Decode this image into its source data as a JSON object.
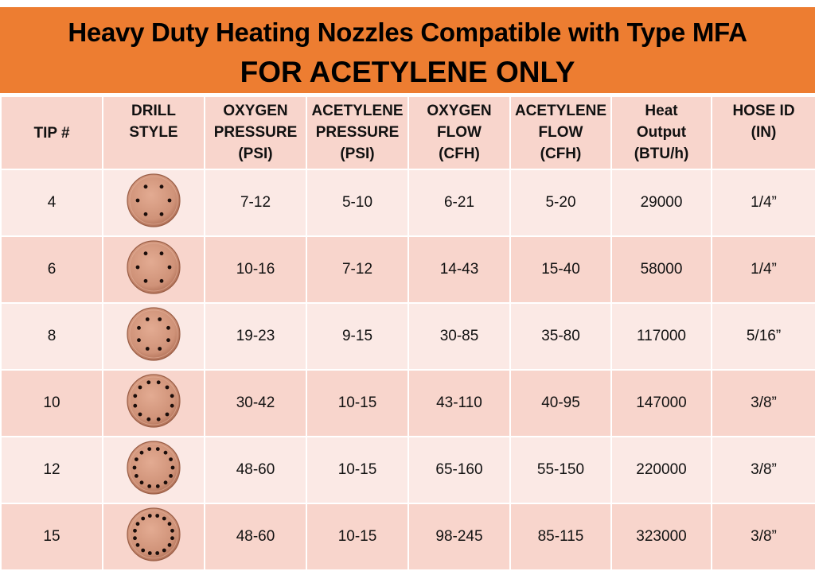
{
  "banner": {
    "title": "Heavy Duty Heating Nozzles Compatible with Type MFA",
    "subtitle": "FOR ACETYLENE ONLY",
    "color": "#ed7d31"
  },
  "table": {
    "headers": [
      [
        "TIP #"
      ],
      [
        "DRILL",
        "STYLE"
      ],
      [
        "OXYGEN",
        "PRESSURE",
        "(PSI)"
      ],
      [
        "ACETYLENE",
        "PRESSURE",
        "(PSI)"
      ],
      [
        "OXYGEN",
        "FLOW",
        "(CFH)"
      ],
      [
        "ACETYLENE",
        "FLOW",
        "(CFH)"
      ],
      [
        "Heat",
        "Output",
        "(BTU/h)"
      ],
      [
        "HOSE ID",
        "(IN)"
      ]
    ],
    "rows": [
      {
        "tip": "4",
        "drill_holes": 6,
        "oxygen_pressure": "7-12",
        "acetylene_pressure": "5-10",
        "oxygen_flow": "6-21",
        "acetylene_flow": "5-20",
        "heat_output": "29000",
        "hose_id": "1/4”"
      },
      {
        "tip": "6",
        "drill_holes": 6,
        "oxygen_pressure": "10-16",
        "acetylene_pressure": "7-12",
        "oxygen_flow": "14-43",
        "acetylene_flow": "15-40",
        "heat_output": "58000",
        "hose_id": "1/4”"
      },
      {
        "tip": "8",
        "drill_holes": 8,
        "oxygen_pressure": "19-23",
        "acetylene_pressure": "9-15",
        "oxygen_flow": "30-85",
        "acetylene_flow": "35-80",
        "heat_output": "117000",
        "hose_id": "5/16”"
      },
      {
        "tip": "10",
        "drill_holes": 12,
        "oxygen_pressure": "30-42",
        "acetylene_pressure": "10-15",
        "oxygen_flow": "43-110",
        "acetylene_flow": "40-95",
        "heat_output": "147000",
        "hose_id": "3/8”"
      },
      {
        "tip": "12",
        "drill_holes": 14,
        "oxygen_pressure": "48-60",
        "acetylene_pressure": "10-15",
        "oxygen_flow": "65-160",
        "acetylene_flow": "55-150",
        "heat_output": "220000",
        "hose_id": "3/8”"
      },
      {
        "tip": "15",
        "drill_holes": 16,
        "oxygen_pressure": "48-60",
        "acetylene_pressure": "10-15",
        "oxygen_flow": "98-245",
        "acetylene_flow": "85-115",
        "heat_output": "323000",
        "hose_id": "3/8”"
      }
    ]
  },
  "colors": {
    "header_bg": "#f8d5cc",
    "row_light": "#fbe9e5",
    "row_dark": "#f8d5cc",
    "copper": "#c98a6e"
  }
}
